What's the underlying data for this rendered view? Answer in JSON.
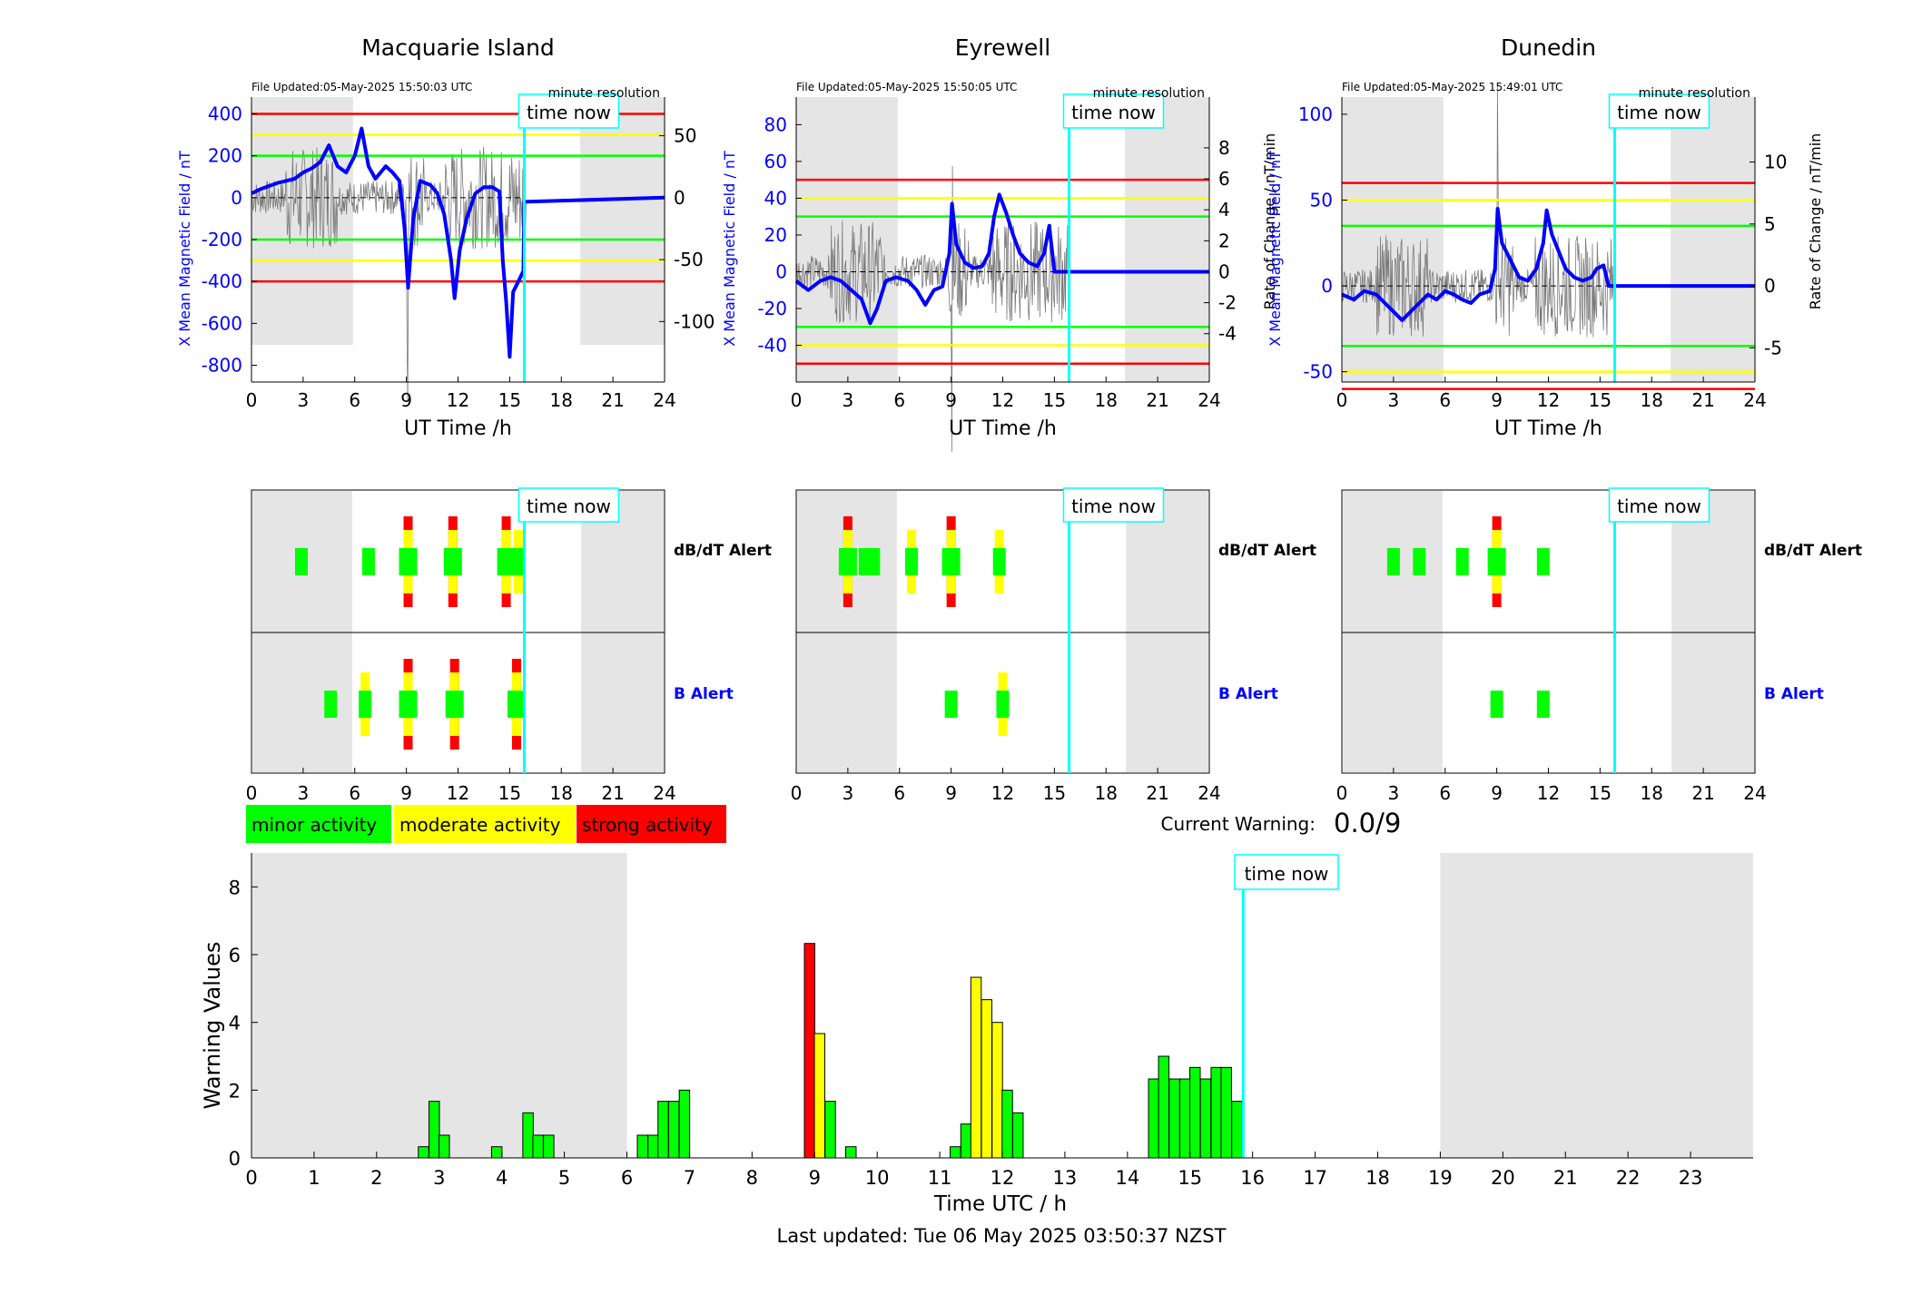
{
  "stations": [
    {
      "name": "Macquarie Island",
      "file_updated": "File Updated:05-May-2025 15:50:03 UTC",
      "resolution": "minute resolution",
      "left_ylabel": "X Mean Magnetic Field / nT",
      "right_ylabel": "",
      "left_yticks": [
        400,
        200,
        0,
        -200,
        -400,
        -600,
        -800
      ],
      "left_ylim": [
        -880,
        480
      ],
      "right_yticks": [
        50,
        0,
        -50,
        -100
      ],
      "thresholds": {
        "red": 400,
        "yellow": 300,
        "green": 200
      },
      "field_trace": [
        [
          0,
          20
        ],
        [
          0.5,
          40
        ],
        [
          1,
          55
        ],
        [
          1.5,
          70
        ],
        [
          2,
          80
        ],
        [
          2.5,
          90
        ],
        [
          3,
          120
        ],
        [
          3.5,
          140
        ],
        [
          4,
          170
        ],
        [
          4.5,
          250
        ],
        [
          5,
          150
        ],
        [
          5.5,
          120
        ],
        [
          6,
          200
        ],
        [
          6.4,
          330
        ],
        [
          6.8,
          150
        ],
        [
          7.2,
          90
        ],
        [
          7.8,
          150
        ],
        [
          8.2,
          120
        ],
        [
          8.6,
          80
        ],
        [
          8.9,
          -150
        ],
        [
          9.1,
          -430
        ],
        [
          9.4,
          -100
        ],
        [
          9.8,
          80
        ],
        [
          10.4,
          60
        ],
        [
          10.8,
          20
        ],
        [
          11.2,
          -80
        ],
        [
          11.6,
          -300
        ],
        [
          11.8,
          -480
        ],
        [
          12.1,
          -250
        ],
        [
          12.5,
          -100
        ],
        [
          13,
          20
        ],
        [
          13.5,
          50
        ],
        [
          14,
          50
        ],
        [
          14.4,
          30
        ],
        [
          14.6,
          -300
        ],
        [
          14.8,
          -500
        ],
        [
          15.0,
          -760
        ],
        [
          15.2,
          -450
        ],
        [
          15.5,
          -400
        ],
        [
          15.8,
          -350
        ],
        [
          15.85,
          -20
        ],
        [
          24,
          0
        ]
      ],
      "shaded": [
        [
          0,
          5.9
        ],
        [
          19.1,
          24
        ]
      ]
    },
    {
      "name": "Eyrewell",
      "file_updated": "File Updated:05-May-2025 15:50:05 UTC",
      "resolution": "minute resolution",
      "left_ylabel": "X Mean Magnetic Field / nT",
      "right_ylabel": "Rate of Change / nT/min",
      "left_yticks": [
        80,
        60,
        40,
        20,
        0,
        -20,
        -40
      ],
      "left_ylim": [
        -60,
        95
      ],
      "right_yticks": [
        8,
        6,
        4,
        2,
        0,
        -2,
        -4
      ],
      "thresholds": {
        "red": 50,
        "yellow": 40,
        "green": 30
      },
      "field_trace": [
        [
          0,
          -5
        ],
        [
          0.7,
          -10
        ],
        [
          1.4,
          -5
        ],
        [
          2,
          -3
        ],
        [
          2.6,
          -5
        ],
        [
          3.2,
          -10
        ],
        [
          3.8,
          -15
        ],
        [
          4.3,
          -28
        ],
        [
          4.7,
          -20
        ],
        [
          5.2,
          -5
        ],
        [
          5.8,
          -3
        ],
        [
          6.5,
          -5
        ],
        [
          7,
          -10
        ],
        [
          7.5,
          -18
        ],
        [
          8,
          -10
        ],
        [
          8.5,
          -8
        ],
        [
          8.9,
          10
        ],
        [
          9.05,
          37
        ],
        [
          9.3,
          15
        ],
        [
          9.8,
          5
        ],
        [
          10.3,
          2
        ],
        [
          10.8,
          3
        ],
        [
          11.2,
          10
        ],
        [
          11.5,
          30
        ],
        [
          11.8,
          42
        ],
        [
          12.2,
          32
        ],
        [
          12.6,
          20
        ],
        [
          13,
          10
        ],
        [
          13.5,
          5
        ],
        [
          14,
          3
        ],
        [
          14.4,
          10
        ],
        [
          14.7,
          25
        ],
        [
          15,
          0
        ],
        [
          15.9,
          0
        ],
        [
          24,
          0
        ]
      ],
      "shaded": [
        [
          0,
          5.9
        ],
        [
          19.1,
          24
        ]
      ]
    },
    {
      "name": "Dunedin",
      "file_updated": "File Updated:05-May-2025 15:49:01 UTC",
      "resolution": "minute resolution",
      "left_ylabel": "X Mean Magnetic Field / nT",
      "right_ylabel": "Rate of Change / nT/min",
      "left_yticks": [
        100,
        50,
        0,
        -50
      ],
      "left_ylim": [
        -56,
        110
      ],
      "right_yticks": [
        10,
        5,
        0,
        -5
      ],
      "thresholds": {
        "red": 60,
        "yellow": 50,
        "green": 35
      },
      "field_trace": [
        [
          0,
          -5
        ],
        [
          0.7,
          -8
        ],
        [
          1.3,
          -3
        ],
        [
          2,
          -5
        ],
        [
          2.5,
          -10
        ],
        [
          3,
          -15
        ],
        [
          3.5,
          -20
        ],
        [
          4,
          -15
        ],
        [
          4.5,
          -10
        ],
        [
          5,
          -5
        ],
        [
          5.5,
          -8
        ],
        [
          6,
          -3
        ],
        [
          6.5,
          -5
        ],
        [
          7,
          -8
        ],
        [
          7.5,
          -10
        ],
        [
          8,
          -5
        ],
        [
          8.6,
          -3
        ],
        [
          8.9,
          10
        ],
        [
          9.05,
          45
        ],
        [
          9.3,
          25
        ],
        [
          9.8,
          15
        ],
        [
          10.3,
          5
        ],
        [
          10.8,
          3
        ],
        [
          11.3,
          10
        ],
        [
          11.7,
          25
        ],
        [
          11.9,
          44
        ],
        [
          12.2,
          30
        ],
        [
          12.6,
          20
        ],
        [
          13,
          10
        ],
        [
          13.5,
          5
        ],
        [
          14,
          3
        ],
        [
          14.5,
          5
        ],
        [
          14.8,
          10
        ],
        [
          15.2,
          12
        ],
        [
          15.5,
          0
        ],
        [
          15.9,
          0
        ],
        [
          24,
          0
        ]
      ],
      "shaded": [
        [
          0,
          5.9
        ],
        [
          19.1,
          24
        ]
      ]
    }
  ],
  "axis": {
    "xlabel": "UT Time /h",
    "xticks": [
      0,
      3,
      6,
      9,
      12,
      15,
      18,
      21,
      24
    ],
    "time_now_label": "time now",
    "time_now": 15.85
  },
  "alerts": {
    "dbdt_label": "dB/dT Alert",
    "b_label": "B Alert",
    "blocks": [
      {
        "dbdt": [
          [
            2.9,
            "minor"
          ],
          [
            6.8,
            "minor"
          ],
          [
            9.1,
            "strong"
          ],
          [
            11.7,
            "strong"
          ],
          [
            14.8,
            "strong"
          ],
          [
            15.5,
            "moderate"
          ]
        ],
        "b": [
          [
            4.6,
            "minor"
          ],
          [
            6.6,
            "moderate"
          ],
          [
            9.1,
            "strong"
          ],
          [
            11.8,
            "strong"
          ],
          [
            15.4,
            "strong"
          ]
        ]
      },
      {
        "dbdt": [
          [
            3.0,
            "strong"
          ],
          [
            4.0,
            "minor"
          ],
          [
            4.5,
            "minor"
          ],
          [
            6.7,
            "moderate"
          ],
          [
            9.0,
            "strong"
          ],
          [
            11.8,
            "moderate"
          ]
        ],
        "b": [
          [
            9.0,
            "minor"
          ],
          [
            12.0,
            "moderate"
          ]
        ]
      },
      {
        "dbdt": [
          [
            3.0,
            "minor"
          ],
          [
            4.5,
            "minor"
          ],
          [
            7.0,
            "minor"
          ],
          [
            9.0,
            "strong"
          ],
          [
            11.7,
            "minor"
          ]
        ],
        "b": [
          [
            9.0,
            "minor"
          ],
          [
            11.7,
            "minor"
          ]
        ]
      }
    ]
  },
  "legend": [
    {
      "label": "minor activity",
      "color": "#00ff00"
    },
    {
      "label": "moderate activity",
      "color": "#ffff00"
    },
    {
      "label": "strong activity",
      "color": "#ff0000"
    }
  ],
  "current_warning": {
    "label": "Current Warning:",
    "value": "0.0/9"
  },
  "chart_data": {
    "type": "bar",
    "xlabel": "Time UTC / h",
    "ylabel": "Warning Values",
    "ylim": [
      0,
      9
    ],
    "xlim": [
      0,
      24
    ],
    "yticks": [
      0,
      2,
      4,
      6,
      8
    ],
    "xticks": [
      0,
      1,
      2,
      3,
      4,
      5,
      6,
      7,
      8,
      9,
      10,
      11,
      12,
      13,
      14,
      15,
      16,
      17,
      18,
      19,
      20,
      21,
      22,
      23
    ],
    "shaded": [
      [
        0,
        6
      ],
      [
        19,
        24
      ]
    ],
    "bars": [
      {
        "x": 2.75,
        "value": 0.33,
        "level": "minor"
      },
      {
        "x": 2.92,
        "value": 1.67,
        "level": "minor"
      },
      {
        "x": 3.08,
        "value": 0.67,
        "level": "minor"
      },
      {
        "x": 3.92,
        "value": 0.33,
        "level": "minor"
      },
      {
        "x": 4.42,
        "value": 1.33,
        "level": "minor"
      },
      {
        "x": 4.58,
        "value": 0.67,
        "level": "minor"
      },
      {
        "x": 4.75,
        "value": 0.67,
        "level": "minor"
      },
      {
        "x": 6.25,
        "value": 0.67,
        "level": "minor"
      },
      {
        "x": 6.42,
        "value": 0.67,
        "level": "minor"
      },
      {
        "x": 6.58,
        "value": 1.67,
        "level": "minor"
      },
      {
        "x": 6.75,
        "value": 1.67,
        "level": "minor"
      },
      {
        "x": 6.92,
        "value": 2.0,
        "level": "minor"
      },
      {
        "x": 8.92,
        "value": 6.33,
        "level": "strong"
      },
      {
        "x": 9.08,
        "value": 3.67,
        "level": "moderate"
      },
      {
        "x": 9.25,
        "value": 1.67,
        "level": "minor"
      },
      {
        "x": 9.58,
        "value": 0.33,
        "level": "minor"
      },
      {
        "x": 11.25,
        "value": 0.33,
        "level": "minor"
      },
      {
        "x": 11.42,
        "value": 1.0,
        "level": "minor"
      },
      {
        "x": 11.58,
        "value": 5.33,
        "level": "moderate"
      },
      {
        "x": 11.75,
        "value": 4.67,
        "level": "moderate"
      },
      {
        "x": 11.92,
        "value": 4.0,
        "level": "moderate"
      },
      {
        "x": 12.08,
        "value": 2.0,
        "level": "minor"
      },
      {
        "x": 12.25,
        "value": 1.33,
        "level": "minor"
      },
      {
        "x": 14.42,
        "value": 2.33,
        "level": "minor"
      },
      {
        "x": 14.58,
        "value": 3.0,
        "level": "minor"
      },
      {
        "x": 14.75,
        "value": 2.33,
        "level": "minor"
      },
      {
        "x": 14.92,
        "value": 2.33,
        "level": "minor"
      },
      {
        "x": 15.08,
        "value": 2.67,
        "level": "minor"
      },
      {
        "x": 15.25,
        "value": 2.33,
        "level": "minor"
      },
      {
        "x": 15.42,
        "value": 2.67,
        "level": "minor"
      },
      {
        "x": 15.58,
        "value": 2.67,
        "level": "minor"
      },
      {
        "x": 15.75,
        "value": 1.67,
        "level": "minor"
      }
    ],
    "time_now": 15.85,
    "time_now_label": "time now"
  },
  "level_colors": {
    "minor": "#00ff00",
    "moderate": "#ffff00",
    "strong": "#ff0000"
  },
  "colors": {
    "red": "#ff0000",
    "yellow": "#ffff00",
    "green": "#00ff00",
    "blue": "#0000ff",
    "cyan": "#00ffff",
    "shade": "#e5e5e5"
  },
  "footer": {
    "last_updated": "Last updated: Tue 06 May 2025 03:50:37 NZST"
  }
}
